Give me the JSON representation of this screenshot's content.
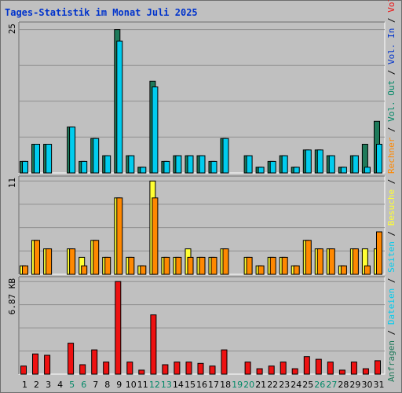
{
  "colors": {
    "background": "#c0c0c0",
    "grid": "#8f8f8f",
    "title": "#0033cc",
    "visits": "#1e7a5a",
    "files": "#00ccee",
    "pages": "#00ccee",
    "sites": "#ffff33",
    "hosts": "#ff8800",
    "volume": "#ee1111",
    "weekend": "#008866",
    "weekday": "#000000"
  },
  "chart_data": {
    "type": "bar",
    "title": "Tages-Statistik im Monat Juli 2025",
    "categories": [
      "1",
      "2",
      "3",
      "4",
      "5",
      "6",
      "7",
      "8",
      "9",
      "10",
      "11",
      "12",
      "13",
      "14",
      "15",
      "16",
      "17",
      "18",
      "19",
      "20",
      "21",
      "22",
      "23",
      "24",
      "25",
      "26",
      "27",
      "28",
      "29",
      "30",
      "31"
    ],
    "weekend_days": [
      "5",
      "6",
      "12",
      "13",
      "19",
      "20",
      "26",
      "27"
    ],
    "panels": [
      {
        "ymax_label": "25",
        "ymax": 25,
        "series": [
          {
            "name": "Anfragen",
            "values": [
              2,
              5,
              5,
              0,
              8,
              2,
              6,
              3,
              25,
              3,
              1,
              16,
              2,
              3,
              3,
              3,
              2,
              6,
              0,
              3,
              1,
              2,
              3,
              1,
              4,
              4,
              3,
              1,
              3,
              5,
              9
            ]
          },
          {
            "name": "Dateien",
            "values": [
              2,
              5,
              5,
              0,
              8,
              2,
              6,
              3,
              23,
              3,
              1,
              15,
              2,
              3,
              3,
              3,
              2,
              6,
              0,
              3,
              1,
              2,
              3,
              1,
              4,
              4,
              3,
              1,
              3,
              1,
              5
            ]
          }
        ]
      },
      {
        "ymax_label": "11",
        "ymax": 11,
        "series": [
          {
            "name": "Seiten",
            "values": [
              0,
              0,
              0,
              0,
              0,
              0,
              0,
              0,
              0,
              0,
              0,
              0,
              0,
              0,
              0,
              0,
              0,
              0,
              0,
              0,
              0,
              0,
              0,
              0,
              0,
              0,
              0,
              0,
              0,
              0,
              0
            ]
          },
          {
            "name": "Besuche",
            "values": [
              1,
              4,
              3,
              0,
              3,
              2,
              4,
              2,
              9,
              2,
              1,
              11,
              2,
              2,
              3,
              2,
              2,
              3,
              0,
              2,
              1,
              2,
              2,
              1,
              4,
              3,
              3,
              1,
              3,
              3,
              3
            ]
          },
          {
            "name": "Rechner",
            "values": [
              1,
              4,
              3,
              0,
              3,
              1,
              4,
              2,
              9,
              2,
              1,
              9,
              2,
              2,
              2,
              2,
              2,
              3,
              0,
              2,
              1,
              2,
              2,
              1,
              4,
              3,
              3,
              1,
              3,
              1,
              5
            ]
          }
        ]
      },
      {
        "ymax_label": "6.87 KB",
        "ymax": 6.87,
        "series": [
          {
            "name": "Volumen",
            "values": [
              0.6,
              1.5,
              1.4,
              0,
              2.3,
              0.7,
              1.8,
              0.9,
              6.87,
              0.9,
              0.3,
              4.4,
              0.7,
              0.9,
              0.9,
              0.8,
              0.6,
              1.8,
              0,
              0.9,
              0.4,
              0.6,
              0.9,
              0.4,
              1.3,
              1.1,
              0.9,
              0.3,
              0.9,
              0.4,
              1.0
            ]
          }
        ]
      }
    ],
    "legend": {
      "items": [
        "Anfragen",
        "Dateien",
        "Seiten",
        "Besuche",
        "Rechner",
        "Vol. Out",
        "Vol. In",
        "Volumen"
      ],
      "separator": " / "
    }
  }
}
